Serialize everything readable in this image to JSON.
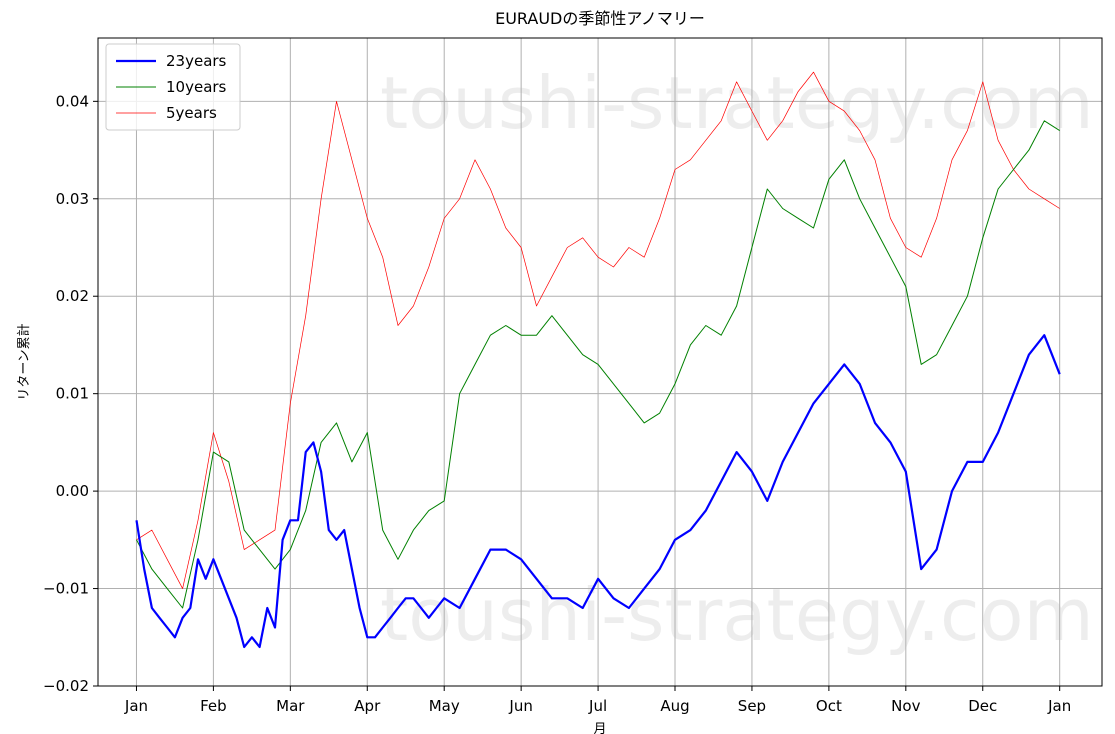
{
  "chart_data": {
    "type": "line",
    "title": "EURAUDの季節性アノマリー",
    "xlabel": "月",
    "ylabel": "リターン累計",
    "x_ticks": [
      "Jan",
      "Feb",
      "Mar",
      "Apr",
      "May",
      "Jun",
      "Jul",
      "Aug",
      "Sep",
      "Oct",
      "Nov",
      "Dec",
      "Jan"
    ],
    "y_ticks": [
      "−0.02",
      "−0.01",
      "0.00",
      "0.01",
      "0.02",
      "0.03",
      "0.04"
    ],
    "ylim": [
      -0.02,
      0.0465
    ],
    "xlim": [
      -0.5,
      12.55
    ],
    "grid": true,
    "legend_position": "top-left",
    "watermark": "toushi-strategy.com",
    "series": [
      {
        "name": "23years",
        "color": "#0000ff",
        "x": [
          0.0,
          0.1,
          0.2,
          0.3,
          0.4,
          0.5,
          0.6,
          0.7,
          0.8,
          0.9,
          1.0,
          1.1,
          1.2,
          1.3,
          1.4,
          1.5,
          1.6,
          1.7,
          1.8,
          1.9,
          2.0,
          2.1,
          2.2,
          2.3,
          2.4,
          2.5,
          2.6,
          2.7,
          2.8,
          2.9,
          3.0,
          3.1,
          3.2,
          3.3,
          3.4,
          3.5,
          3.6,
          3.7,
          3.8,
          3.9,
          4.0,
          4.2,
          4.4,
          4.6,
          4.8,
          5.0,
          5.2,
          5.4,
          5.6,
          5.8,
          6.0,
          6.2,
          6.4,
          6.6,
          6.8,
          7.0,
          7.2,
          7.4,
          7.6,
          7.8,
          8.0,
          8.2,
          8.4,
          8.6,
          8.8,
          9.0,
          9.2,
          9.4,
          9.6,
          9.8,
          10.0,
          10.2,
          10.4,
          10.6,
          10.8,
          11.0,
          11.2,
          11.4,
          11.6,
          11.8,
          12.0
        ],
        "values": [
          -0.003,
          -0.008,
          -0.012,
          -0.013,
          -0.014,
          -0.015,
          -0.013,
          -0.012,
          -0.007,
          -0.009,
          -0.007,
          -0.009,
          -0.011,
          -0.013,
          -0.016,
          -0.015,
          -0.016,
          -0.012,
          -0.014,
          -0.005,
          -0.003,
          -0.003,
          0.004,
          0.005,
          0.002,
          -0.004,
          -0.005,
          -0.004,
          -0.008,
          -0.012,
          -0.015,
          -0.015,
          -0.014,
          -0.013,
          -0.012,
          -0.011,
          -0.011,
          -0.012,
          -0.013,
          -0.012,
          -0.011,
          -0.012,
          -0.009,
          -0.006,
          -0.006,
          -0.007,
          -0.009,
          -0.011,
          -0.011,
          -0.012,
          -0.009,
          -0.011,
          -0.012,
          -0.01,
          -0.008,
          -0.005,
          -0.004,
          -0.002,
          0.001,
          0.004,
          0.002,
          -0.001,
          0.003,
          0.006,
          0.009,
          0.011,
          0.013,
          0.011,
          0.007,
          0.005,
          0.002,
          -0.008,
          -0.006,
          0.0,
          0.003,
          0.003,
          0.006,
          0.01,
          0.014,
          0.016,
          0.012
        ]
      },
      {
        "name": "10years",
        "color": "#008000",
        "x": [
          0.0,
          0.2,
          0.4,
          0.6,
          0.8,
          1.0,
          1.2,
          1.4,
          1.6,
          1.8,
          2.0,
          2.2,
          2.4,
          2.6,
          2.8,
          3.0,
          3.2,
          3.4,
          3.6,
          3.8,
          4.0,
          4.2,
          4.4,
          4.6,
          4.8,
          5.0,
          5.2,
          5.4,
          5.6,
          5.8,
          6.0,
          6.2,
          6.4,
          6.6,
          6.8,
          7.0,
          7.2,
          7.4,
          7.6,
          7.8,
          8.0,
          8.2,
          8.4,
          8.6,
          8.8,
          9.0,
          9.2,
          9.4,
          9.6,
          9.8,
          10.0,
          10.2,
          10.4,
          10.6,
          10.8,
          11.0,
          11.2,
          11.4,
          11.6,
          11.8,
          12.0
        ],
        "values": [
          -0.005,
          -0.008,
          -0.01,
          -0.012,
          -0.005,
          0.004,
          0.003,
          -0.004,
          -0.006,
          -0.008,
          -0.006,
          -0.002,
          0.005,
          0.007,
          0.003,
          0.006,
          -0.004,
          -0.007,
          -0.004,
          -0.002,
          -0.001,
          0.01,
          0.013,
          0.016,
          0.017,
          0.016,
          0.016,
          0.018,
          0.016,
          0.014,
          0.013,
          0.011,
          0.009,
          0.007,
          0.008,
          0.011,
          0.015,
          0.017,
          0.016,
          0.019,
          0.025,
          0.031,
          0.029,
          0.028,
          0.027,
          0.032,
          0.034,
          0.03,
          0.027,
          0.024,
          0.021,
          0.013,
          0.014,
          0.017,
          0.02,
          0.026,
          0.031,
          0.033,
          0.035,
          0.038,
          0.037
        ]
      },
      {
        "name": "5years",
        "color": "#ff0000",
        "x": [
          0.0,
          0.2,
          0.4,
          0.6,
          0.8,
          1.0,
          1.2,
          1.4,
          1.6,
          1.8,
          2.0,
          2.2,
          2.4,
          2.6,
          2.8,
          3.0,
          3.2,
          3.4,
          3.6,
          3.8,
          4.0,
          4.2,
          4.4,
          4.6,
          4.8,
          5.0,
          5.2,
          5.4,
          5.6,
          5.8,
          6.0,
          6.2,
          6.4,
          6.6,
          6.8,
          7.0,
          7.2,
          7.4,
          7.6,
          7.8,
          8.0,
          8.2,
          8.4,
          8.6,
          8.8,
          9.0,
          9.2,
          9.4,
          9.6,
          9.8,
          10.0,
          10.2,
          10.4,
          10.6,
          10.8,
          11.0,
          11.2,
          11.4,
          11.6,
          11.8,
          12.0
        ],
        "values": [
          -0.005,
          -0.004,
          -0.007,
          -0.01,
          -0.003,
          0.006,
          0.001,
          -0.006,
          -0.005,
          -0.004,
          0.009,
          0.018,
          0.03,
          0.04,
          0.034,
          0.028,
          0.024,
          0.017,
          0.019,
          0.023,
          0.028,
          0.03,
          0.034,
          0.031,
          0.027,
          0.025,
          0.019,
          0.022,
          0.025,
          0.026,
          0.024,
          0.023,
          0.025,
          0.024,
          0.028,
          0.033,
          0.034,
          0.036,
          0.038,
          0.042,
          0.039,
          0.036,
          0.038,
          0.041,
          0.043,
          0.04,
          0.039,
          0.037,
          0.034,
          0.028,
          0.025,
          0.024,
          0.028,
          0.034,
          0.037,
          0.042,
          0.036,
          0.033,
          0.031,
          0.03,
          0.029
        ]
      }
    ]
  }
}
